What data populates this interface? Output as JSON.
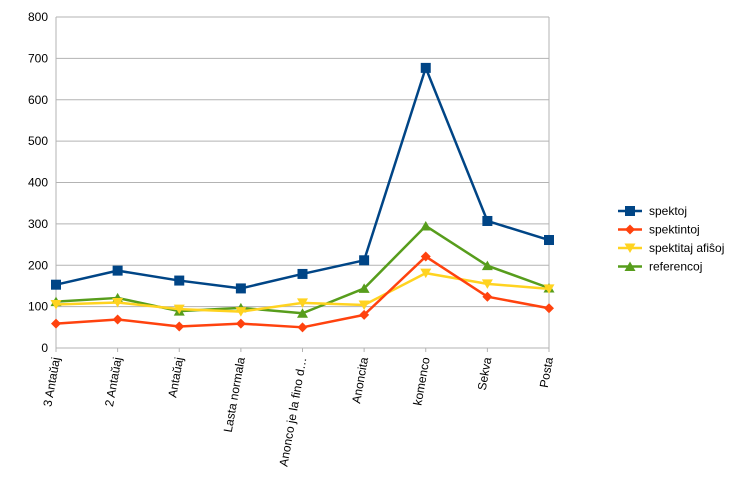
{
  "chart_data": {
    "type": "line",
    "title": "",
    "xlabel": "",
    "ylabel": "",
    "ylim": [
      0,
      800
    ],
    "yticks": [
      0,
      100,
      200,
      300,
      400,
      500,
      600,
      700,
      800
    ],
    "grid": true,
    "legend_position": "right",
    "categories": [
      "3 Antaŭaj",
      "2 Antaŭaj",
      "Antaŭaj",
      "Lasta normala",
      "Anonco je la fino d…",
      "Anoncita",
      "komenco",
      "Sekva",
      "Posta"
    ],
    "series": [
      {
        "name": "spektoj",
        "color": "#004586",
        "marker": "square",
        "values": [
          153,
          187,
          163,
          144,
          179,
          212,
          677,
          307,
          261
        ]
      },
      {
        "name": "spektintoj",
        "color": "#ff420e",
        "marker": "diamond",
        "values": [
          59,
          69,
          52,
          59,
          50,
          80,
          221,
          124,
          96
        ]
      },
      {
        "name": "spektitaj afiŝoj",
        "color": "#ffd320",
        "marker": "triangle-down",
        "values": [
          105,
          110,
          94,
          88,
          109,
          104,
          181,
          155,
          143
        ]
      },
      {
        "name": "referencoj",
        "color": "#579d1c",
        "marker": "triangle-up",
        "values": [
          112,
          121,
          89,
          97,
          84,
          144,
          295,
          199,
          145
        ]
      }
    ]
  }
}
